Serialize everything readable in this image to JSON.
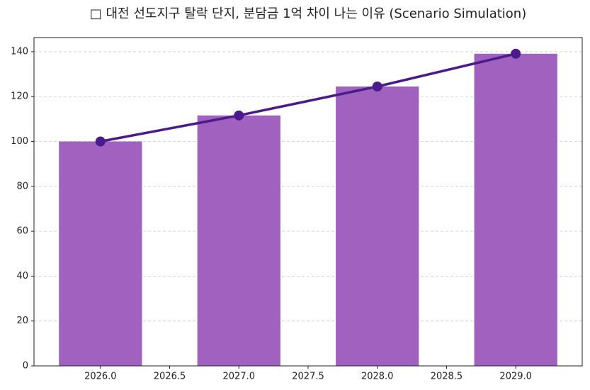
{
  "chart_data": {
    "type": "bar_line",
    "title": "□ 대전 선도지구 탈락 단지, 분담금 1억 차이 나는 이유 (Scenario Simulation)",
    "x": [
      2026,
      2027,
      2028,
      2029
    ],
    "series": [
      {
        "type": "bar",
        "color": "#a062be",
        "values": [
          100,
          111.6,
          124.5,
          139.1
        ]
      },
      {
        "type": "line",
        "color": "#4b1a8c",
        "values": [
          100,
          111.6,
          124.5,
          139.1
        ]
      }
    ],
    "xlim": [
      2025.52,
      2029.48
    ],
    "xticks": [
      {
        "value": 2026,
        "label": "2026.0"
      },
      {
        "value": 2026.5,
        "label": "2026.5"
      },
      {
        "value": 2027,
        "label": "2027.0"
      },
      {
        "value": 2027.5,
        "label": "2027.5"
      },
      {
        "value": 2028,
        "label": "2028.0"
      },
      {
        "value": 2028.5,
        "label": "2028.5"
      },
      {
        "value": 2029,
        "label": "2029.0"
      }
    ],
    "ylim": [
      0,
      146.3
    ],
    "yticks": [
      0,
      20,
      40,
      60,
      80,
      100,
      120,
      140
    ],
    "grid": true
  }
}
